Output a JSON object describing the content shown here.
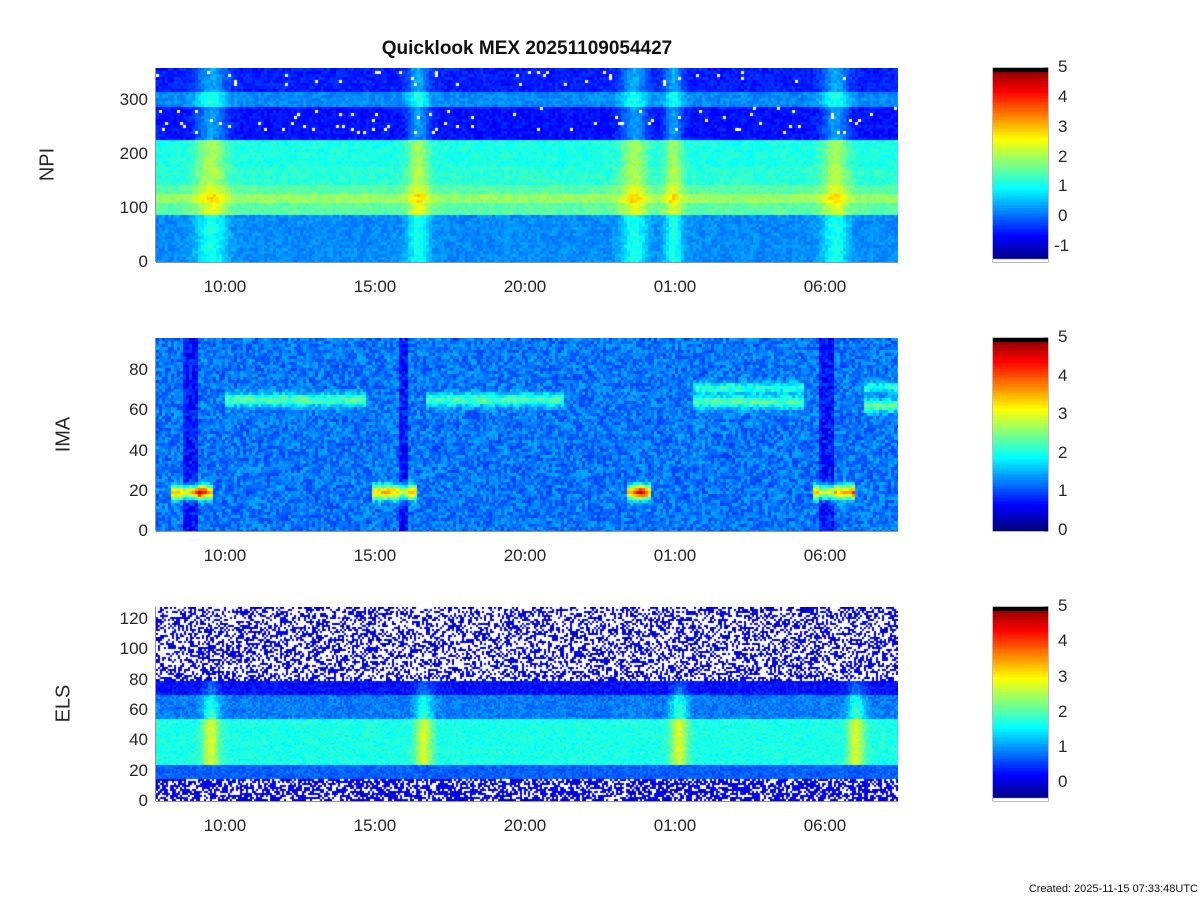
{
  "chart_data": {
    "type": "heatmap",
    "title": "Quicklook MEX 20251109054427",
    "footer": "Created: 2025-11-15 07:33:48UTC",
    "x_time_range": [
      "07:42",
      "08:24"
    ],
    "xticks": [
      "10:00",
      "15:00",
      "20:00",
      "01:00",
      "06:00"
    ],
    "panels": [
      {
        "ylabel": "NPI",
        "ylim": [
          0,
          360
        ],
        "yticks": [
          "0",
          "100",
          "200",
          "300"
        ],
        "yvals": [
          0,
          100,
          200,
          300
        ],
        "colorbar": {
          "range": [
            -1.5,
            5
          ],
          "ticks": [
            "5",
            "4",
            "3",
            "2",
            "1",
            "0",
            "-1"
          ],
          "tickvals": [
            5,
            4,
            3,
            2,
            1,
            0,
            -1
          ]
        }
      },
      {
        "ylabel": "IMA",
        "ylim": [
          0,
          96
        ],
        "yticks": [
          "0",
          "20",
          "40",
          "60",
          "80"
        ],
        "yvals": [
          0,
          20,
          40,
          60,
          80
        ],
        "colorbar": {
          "range": [
            0,
            5
          ],
          "ticks": [
            "5",
            "4",
            "3",
            "2",
            "1",
            "0"
          ],
          "tickvals": [
            5,
            4,
            3,
            2,
            1,
            0
          ]
        }
      },
      {
        "ylabel": "ELS",
        "ylim": [
          0,
          128
        ],
        "yticks": [
          "0",
          "20",
          "40",
          "60",
          "80",
          "100",
          "120"
        ],
        "yvals": [
          0,
          20,
          40,
          60,
          80,
          100,
          120
        ],
        "colorbar": {
          "range": [
            -0.5,
            5
          ],
          "ticks": [
            "5",
            "4",
            "3",
            "2",
            "1",
            "0"
          ],
          "tickvals": [
            5,
            4,
            3,
            2,
            1,
            0
          ]
        }
      }
    ]
  }
}
